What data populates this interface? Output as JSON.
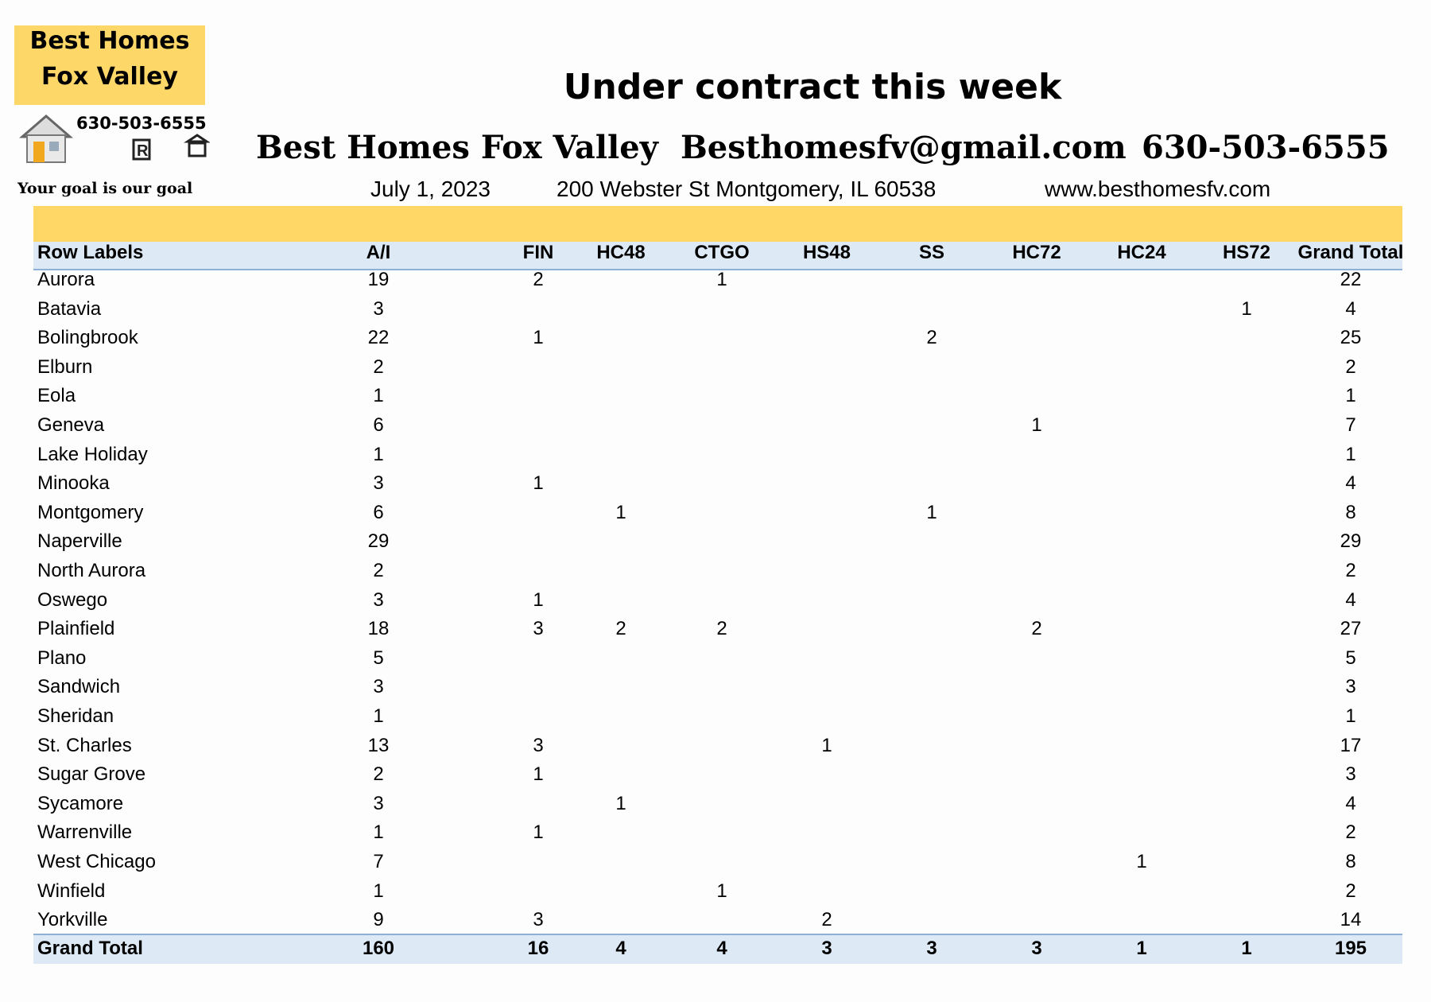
{
  "logo": {
    "name_line1": "Best Homes",
    "name_line2": "Fox Valley",
    "phone": "630-503-6555",
    "tagline": "Your goal is our goal"
  },
  "header": {
    "title": "Under contract this week",
    "company": "Best Homes Fox Valley",
    "email": "Besthomesfv@gmail.com",
    "phone": "630-503-6555",
    "date": "July 1, 2023",
    "address": "200 Webster St Montgomery, IL 60538",
    "website": "www.besthomesfv.com"
  },
  "table": {
    "columns": [
      "Row Labels",
      "A/I",
      "FIN",
      "HC48",
      "CTGO",
      "HS48",
      "SS",
      "HC72",
      "HC24",
      "HS72",
      "Grand Total"
    ],
    "rows": [
      [
        "Aurora",
        19,
        2,
        null,
        1,
        null,
        null,
        null,
        null,
        null,
        22
      ],
      [
        "Batavia",
        3,
        null,
        null,
        null,
        null,
        null,
        null,
        null,
        1,
        4
      ],
      [
        "Bolingbrook",
        22,
        1,
        null,
        null,
        null,
        2,
        null,
        null,
        null,
        25
      ],
      [
        "Elburn",
        2,
        null,
        null,
        null,
        null,
        null,
        null,
        null,
        null,
        2
      ],
      [
        "Eola",
        1,
        null,
        null,
        null,
        null,
        null,
        null,
        null,
        null,
        1
      ],
      [
        "Geneva",
        6,
        null,
        null,
        null,
        null,
        null,
        1,
        null,
        null,
        7
      ],
      [
        "Lake Holiday",
        1,
        null,
        null,
        null,
        null,
        null,
        null,
        null,
        null,
        1
      ],
      [
        "Minooka",
        3,
        1,
        null,
        null,
        null,
        null,
        null,
        null,
        null,
        4
      ],
      [
        "Montgomery",
        6,
        null,
        1,
        null,
        null,
        1,
        null,
        null,
        null,
        8
      ],
      [
        "Naperville",
        29,
        null,
        null,
        null,
        null,
        null,
        null,
        null,
        null,
        29
      ],
      [
        "North Aurora",
        2,
        null,
        null,
        null,
        null,
        null,
        null,
        null,
        null,
        2
      ],
      [
        "Oswego",
        3,
        1,
        null,
        null,
        null,
        null,
        null,
        null,
        null,
        4
      ],
      [
        "Plainfield",
        18,
        3,
        2,
        2,
        null,
        null,
        2,
        null,
        null,
        27
      ],
      [
        "Plano",
        5,
        null,
        null,
        null,
        null,
        null,
        null,
        null,
        null,
        5
      ],
      [
        "Sandwich",
        3,
        null,
        null,
        null,
        null,
        null,
        null,
        null,
        null,
        3
      ],
      [
        "Sheridan",
        1,
        null,
        null,
        null,
        null,
        null,
        null,
        null,
        null,
        1
      ],
      [
        "St. Charles",
        13,
        3,
        null,
        null,
        1,
        null,
        null,
        null,
        null,
        17
      ],
      [
        "Sugar Grove",
        2,
        1,
        null,
        null,
        null,
        null,
        null,
        null,
        null,
        3
      ],
      [
        "Sycamore",
        3,
        null,
        1,
        null,
        null,
        null,
        null,
        null,
        null,
        4
      ],
      [
        "Warrenville",
        1,
        1,
        null,
        null,
        null,
        null,
        null,
        null,
        null,
        2
      ],
      [
        "West Chicago",
        7,
        null,
        null,
        null,
        null,
        null,
        null,
        1,
        null,
        8
      ],
      [
        "Winfield",
        1,
        null,
        null,
        1,
        null,
        null,
        null,
        null,
        null,
        2
      ],
      [
        "Yorkville",
        9,
        3,
        null,
        null,
        2,
        null,
        null,
        null,
        null,
        14
      ]
    ],
    "total": [
      "Grand Total",
      160,
      16,
      4,
      4,
      3,
      3,
      3,
      1,
      1,
      195
    ]
  }
}
